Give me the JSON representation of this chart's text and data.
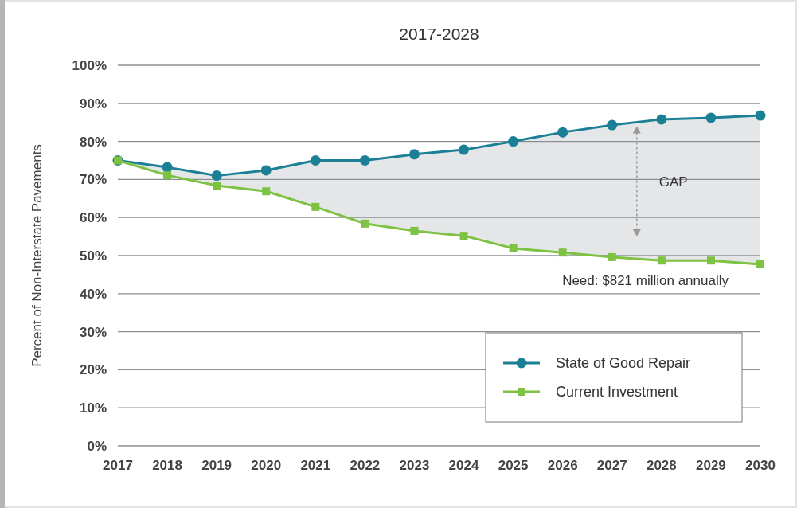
{
  "chart_data": {
    "type": "line",
    "title": "2017-2028",
    "ylabel": "Percent of Non-Interstate Pavements",
    "x": [
      2017,
      2018,
      2019,
      2020,
      2021,
      2022,
      2023,
      2024,
      2025,
      2026,
      2027,
      2028,
      2029,
      2030
    ],
    "xlim": [
      2017,
      2030
    ],
    "xticks": [
      2017,
      2018,
      2019,
      2020,
      2021,
      2022,
      2023,
      2024,
      2025,
      2026,
      2027,
      2028,
      2029,
      2030
    ],
    "ylim": [
      0,
      100
    ],
    "yticks": [
      {
        "value": 0,
        "label": "0%"
      },
      {
        "value": 10,
        "label": "10%"
      },
      {
        "value": 20,
        "label": "20%"
      },
      {
        "value": 30,
        "label": "30%"
      },
      {
        "value": 40,
        "label": "40%"
      },
      {
        "value": 50,
        "label": "50%"
      },
      {
        "value": 60,
        "label": "60%"
      },
      {
        "value": 70,
        "label": "70%"
      },
      {
        "value": 80,
        "label": "80%"
      },
      {
        "value": 90,
        "label": "90%"
      },
      {
        "value": 100,
        "label": "100%"
      }
    ],
    "grid": "y",
    "legend": "bottom right",
    "series": [
      {
        "name": "State of Good Repair",
        "color": "#1b8096",
        "marker": "circle",
        "values": [
          75,
          73.2,
          71,
          72.4,
          75,
          75,
          76.6,
          77.8,
          80,
          82.4,
          84.3,
          85.8,
          86.2,
          86.8
        ]
      },
      {
        "name": "Current Investment",
        "color": "#7dc242",
        "marker": "square",
        "values": [
          75,
          71.1,
          68.4,
          66.9,
          62.8,
          58.4,
          56.5,
          55.2,
          51.9,
          50.8,
          49.6,
          48.7,
          48.7,
          47.7
        ],
        "lower": [
          75,
          71.1,
          68.4,
          66.9,
          62.8,
          58.4,
          56.5,
          55.2,
          51.9,
          50.8,
          49.6,
          48.7,
          48.7,
          47.7
        ],
        "upper": [
          75,
          73.2,
          71,
          72.4,
          75,
          75,
          76.6,
          77.8,
          80,
          82.4,
          84.3,
          85.8,
          86.2,
          86.8
        ]
      }
    ],
    "annotations": [
      "GAP",
      "Need: $821 million annually"
    ]
  }
}
